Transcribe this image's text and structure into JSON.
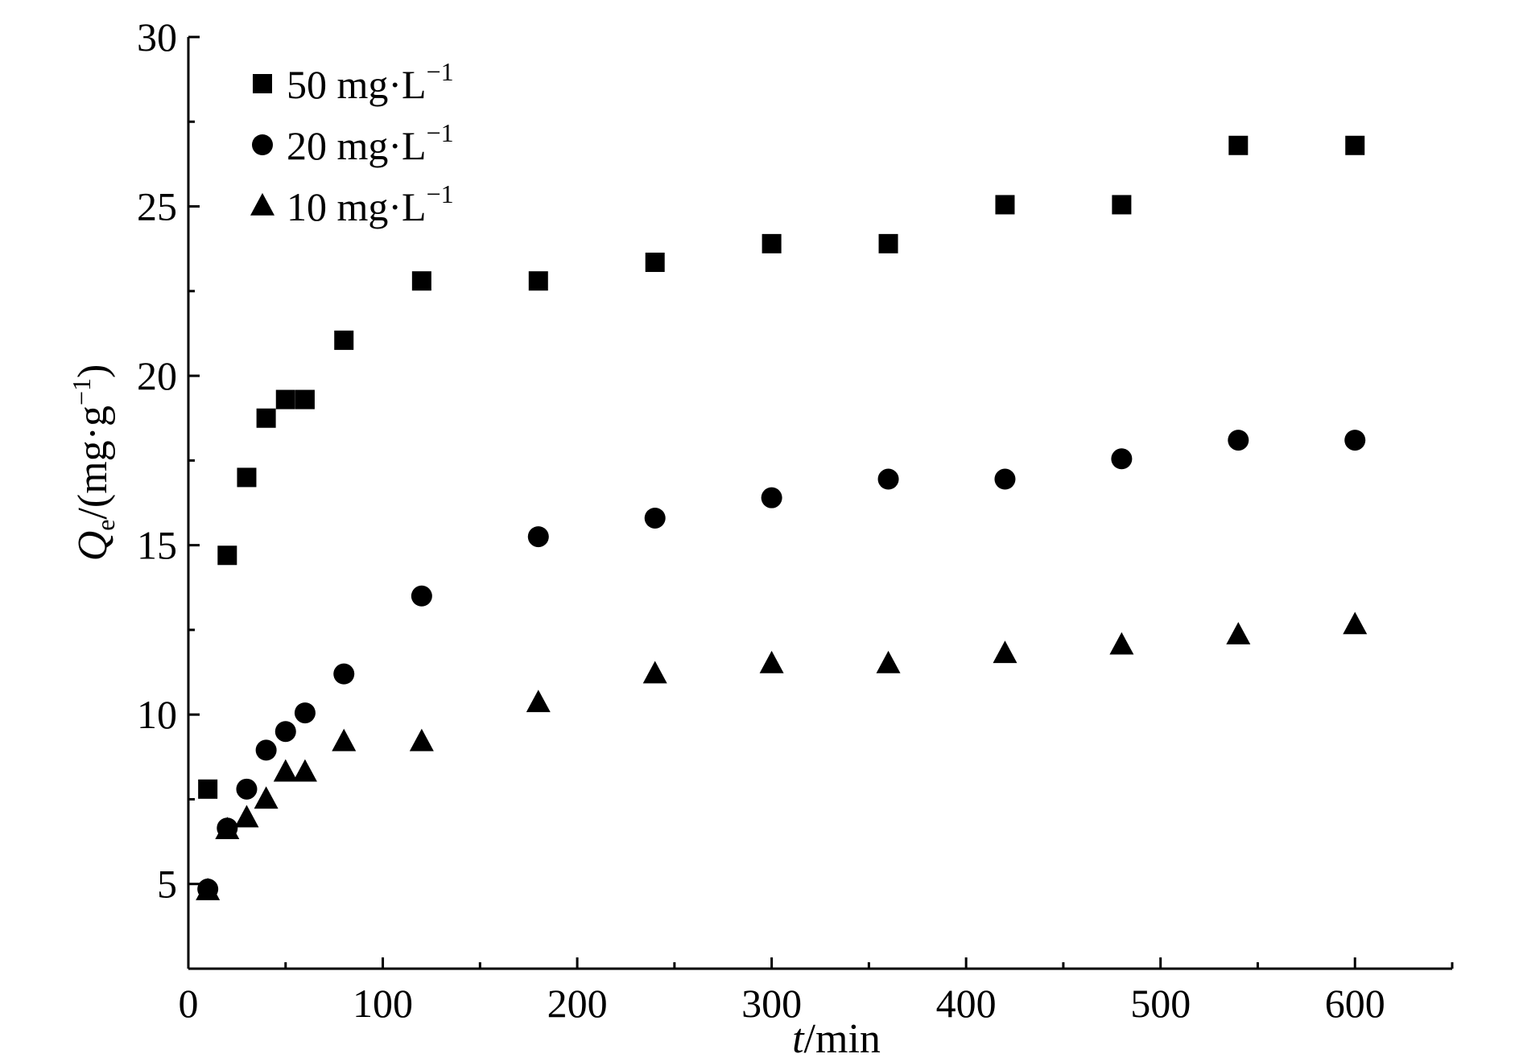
{
  "chart_data": {
    "type": "scatter",
    "title": "",
    "xlabel": {
      "italic": "t",
      "rest": "/min"
    },
    "ylabel": {
      "italic": "Q",
      "sub": "e",
      "rest": "/(mg·g",
      "sup": "−1",
      "close": ")"
    },
    "xlim": [
      0,
      650
    ],
    "ylim": [
      2.5,
      30
    ],
    "xticks": [
      0,
      100,
      200,
      300,
      400,
      500,
      600
    ],
    "yticks": [
      5,
      10,
      15,
      20,
      25,
      30
    ],
    "grid": false,
    "legend_position": "top-left",
    "series": [
      {
        "name": "50 mg·L",
        "name_sup": "−1",
        "marker": "square",
        "x": [
          10,
          20,
          30,
          40,
          50,
          60,
          80,
          120,
          180,
          240,
          300,
          360,
          420,
          480,
          540,
          600
        ],
        "y": [
          7.8,
          14.7,
          17.0,
          18.75,
          19.3,
          19.3,
          21.05,
          22.8,
          22.8,
          23.35,
          23.9,
          23.9,
          25.05,
          25.05,
          26.8,
          26.8
        ]
      },
      {
        "name": "20 mg·L",
        "name_sup": "−1",
        "marker": "circle",
        "x": [
          10,
          20,
          30,
          40,
          50,
          60,
          80,
          120,
          180,
          240,
          300,
          360,
          420,
          480,
          540,
          600
        ],
        "y": [
          4.85,
          6.65,
          7.8,
          8.95,
          9.5,
          10.05,
          11.2,
          13.5,
          15.25,
          15.8,
          16.4,
          16.95,
          16.95,
          17.55,
          18.1,
          18.1
        ]
      },
      {
        "name": "10 mg·L",
        "name_sup": "−1",
        "marker": "triangle",
        "x": [
          10,
          20,
          30,
          40,
          50,
          60,
          80,
          120,
          180,
          240,
          300,
          360,
          420,
          480,
          540,
          600
        ],
        "y": [
          4.8,
          6.6,
          6.95,
          7.5,
          8.3,
          8.3,
          9.2,
          9.2,
          10.35,
          11.2,
          11.5,
          11.5,
          11.8,
          12.05,
          12.35,
          12.65
        ]
      }
    ]
  },
  "colors": {
    "ink": "#000000",
    "background": "#ffffff"
  }
}
